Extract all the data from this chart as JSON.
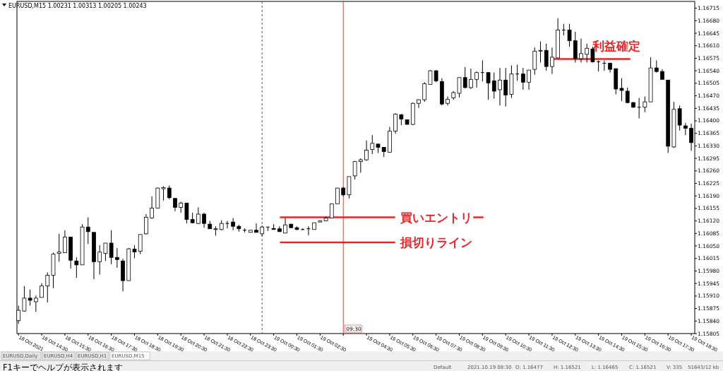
{
  "chart_data": {
    "type": "candlestick",
    "title": "EURUSD,M15  1.00231 1.00313 1.00205 1.00243",
    "x": [
      "2021-10-18T13:30",
      "2021-10-18T13:45",
      "2021-10-18T14:00",
      "2021-10-18T14:15",
      "2021-10-18T14:30",
      "2021-10-18T14:45",
      "2021-10-18T15:00",
      "2021-10-18T15:15",
      "2021-10-18T15:30",
      "2021-10-18T15:45",
      "2021-10-18T16:00",
      "2021-10-18T16:15",
      "2021-10-18T16:30",
      "2021-10-18T16:45",
      "2021-10-18T17:00",
      "2021-10-18T17:15",
      "2021-10-18T17:30",
      "2021-10-18T17:45",
      "2021-10-18T18:00",
      "2021-10-18T18:15",
      "2021-10-18T18:30",
      "2021-10-18T18:45",
      "2021-10-18T19:00",
      "2021-10-18T19:15",
      "2021-10-18T19:30",
      "2021-10-18T19:45",
      "2021-10-18T20:00",
      "2021-10-18T20:15",
      "2021-10-18T20:30",
      "2021-10-18T20:45",
      "2021-10-18T21:00",
      "2021-10-18T21:15",
      "2021-10-18T21:30",
      "2021-10-18T21:45",
      "2021-10-18T22:00",
      "2021-10-18T22:15",
      "2021-10-18T22:30",
      "2021-10-18T22:45",
      "2021-10-18T23:00",
      "2021-10-18T23:15",
      "2021-10-18T23:30",
      "2021-10-18T23:45",
      "2021-10-19T00:00",
      "2021-10-19T00:15",
      "2021-10-19T00:30",
      "2021-10-19T00:45",
      "2021-10-19T01:00",
      "2021-10-19T01:15",
      "2021-10-19T01:30",
      "2021-10-19T01:45",
      "2021-10-19T02:00",
      "2021-10-19T02:15",
      "2021-10-19T02:30",
      "2021-10-19T02:45",
      "2021-10-19T03:00",
      "2021-10-19T03:15",
      "2021-10-19T03:30",
      "2021-10-19T03:45",
      "2021-10-19T04:00",
      "2021-10-19T04:15",
      "2021-10-19T04:30",
      "2021-10-19T04:45",
      "2021-10-19T05:00",
      "2021-10-19T05:15",
      "2021-10-19T05:30",
      "2021-10-19T05:45",
      "2021-10-19T06:00",
      "2021-10-19T06:15",
      "2021-10-19T06:30",
      "2021-10-19T06:45",
      "2021-10-19T07:00",
      "2021-10-19T07:15",
      "2021-10-19T07:30",
      "2021-10-19T07:45",
      "2021-10-19T08:00",
      "2021-10-19T08:15",
      "2021-10-19T08:30",
      "2021-10-19T08:45",
      "2021-10-19T09:00",
      "2021-10-19T09:15",
      "2021-10-19T09:30",
      "2021-10-19T09:45",
      "2021-10-19T10:00",
      "2021-10-19T10:15",
      "2021-10-19T10:30",
      "2021-10-19T10:45",
      "2021-10-19T11:00",
      "2021-10-19T11:15",
      "2021-10-19T11:30",
      "2021-10-19T11:45",
      "2021-10-19T12:00",
      "2021-10-19T12:15",
      "2021-10-19T12:30",
      "2021-10-19T12:45",
      "2021-10-19T13:00",
      "2021-10-19T13:15",
      "2021-10-19T13:30",
      "2021-10-19T13:45",
      "2021-10-19T14:00",
      "2021-10-19T14:15",
      "2021-10-19T14:30",
      "2021-10-19T14:45",
      "2021-10-19T15:00",
      "2021-10-19T15:15",
      "2021-10-19T15:30",
      "2021-10-19T15:45",
      "2021-10-19T16:00",
      "2021-10-19T16:15",
      "2021-10-19T16:30",
      "2021-10-19T16:45",
      "2021-10-19T17:00",
      "2021-10-19T17:15",
      "2021-10-19T17:30",
      "2021-10-19T17:45",
      "2021-10-19T18:00",
      "2021-10-19T18:15",
      "2021-10-19T18:30"
    ],
    "ohlc": [
      [
        1.15841,
        1.15883,
        1.15832,
        1.1587
      ],
      [
        1.15868,
        1.15938,
        1.15866,
        1.15904
      ],
      [
        1.15904,
        1.15928,
        1.15883,
        1.15898
      ],
      [
        1.15894,
        1.15911,
        1.15866,
        1.15904
      ],
      [
        1.15906,
        1.15946,
        1.15906,
        1.15938
      ],
      [
        1.15938,
        1.15976,
        1.15892,
        1.15968
      ],
      [
        1.15968,
        1.16031,
        1.15932,
        1.16027
      ],
      [
        1.16029,
        1.16084,
        1.16006,
        1.16033
      ],
      [
        1.16031,
        1.16094,
        1.16031,
        1.16075
      ],
      [
        1.16075,
        1.16075,
        1.15987,
        1.1601
      ],
      [
        1.16008,
        1.16018,
        1.15961,
        1.15997
      ],
      [
        1.15997,
        1.16111,
        1.15997,
        1.16103
      ],
      [
        1.16103,
        1.1613,
        1.16056,
        1.1609
      ],
      [
        1.16088,
        1.16088,
        1.15957,
        1.16006
      ],
      [
        1.16006,
        1.16052,
        1.1597,
        1.16033
      ],
      [
        1.16029,
        1.16058,
        1.16008,
        1.16058
      ],
      [
        1.16058,
        1.16094,
        1.15999,
        1.16018
      ],
      [
        1.16018,
        1.16044,
        1.15989,
        1.16012
      ],
      [
        1.16008,
        1.16014,
        1.15923,
        1.15953
      ],
      [
        1.15953,
        1.16044,
        1.15953,
        1.16042
      ],
      [
        1.16041,
        1.16052,
        1.16016,
        1.16033
      ],
      [
        1.16035,
        1.16082,
        1.16027,
        1.16082
      ],
      [
        1.16084,
        1.16139,
        1.16082,
        1.1613
      ],
      [
        1.16128,
        1.16189,
        1.16126,
        1.16156
      ],
      [
        1.16156,
        1.16213,
        1.16156,
        1.16212
      ],
      [
        1.1621,
        1.16217,
        1.16177,
        1.16213
      ],
      [
        1.16212,
        1.16219,
        1.16181,
        1.16185
      ],
      [
        1.16183,
        1.16183,
        1.16147,
        1.16158
      ],
      [
        1.16158,
        1.16174,
        1.16143,
        1.1617
      ],
      [
        1.1617,
        1.1617,
        1.16113,
        1.16124
      ],
      [
        1.16124,
        1.16143,
        1.16113,
        1.16115
      ],
      [
        1.16113,
        1.16158,
        1.16111,
        1.16139
      ],
      [
        1.16139,
        1.16143,
        1.16101,
        1.16113
      ],
      [
        1.16111,
        1.1612,
        1.16098,
        1.16098
      ],
      [
        1.16096,
        1.16105,
        1.16079,
        1.16098
      ],
      [
        1.16096,
        1.16122,
        1.16094,
        1.16113
      ],
      [
        1.16113,
        1.1612,
        1.16099,
        1.16113
      ],
      [
        1.16117,
        1.16128,
        1.16094,
        1.16105
      ],
      [
        1.16105,
        1.16109,
        1.1609,
        1.16098
      ],
      [
        1.16094,
        1.16099,
        1.16088,
        1.16094
      ],
      [
        1.16088,
        1.16094,
        1.16088,
        1.16094
      ],
      [
        1.16094,
        1.16113,
        1.16088,
        1.16088
      ],
      [
        1.16084,
        1.16107,
        1.16077,
        1.16103
      ],
      [
        1.16103,
        1.16103,
        1.16092,
        1.16103
      ],
      [
        1.16099,
        1.16111,
        1.16096,
        1.16096
      ],
      [
        1.16098,
        1.16105,
        1.1609,
        1.1609
      ],
      [
        1.16086,
        1.16128,
        1.16086,
        1.16109
      ],
      [
        1.16111,
        1.16111,
        1.16101,
        1.16101
      ],
      [
        1.16101,
        1.16105,
        1.16094,
        1.16096
      ],
      [
        1.16096,
        1.16099,
        1.16094,
        1.16096
      ],
      [
        1.16098,
        1.16105,
        1.1608,
        1.16098
      ],
      [
        1.16096,
        1.16115,
        1.16096,
        1.16115
      ],
      [
        1.16117,
        1.16122,
        1.16117,
        1.1612
      ],
      [
        1.1612,
        1.16132,
        1.1612,
        1.16128
      ],
      [
        1.16128,
        1.16168,
        1.16128,
        1.16168
      ],
      [
        1.16168,
        1.16212,
        1.16168,
        1.16212
      ],
      [
        1.16212,
        1.16215,
        1.16189,
        1.16193
      ],
      [
        1.16193,
        1.16244,
        1.16183,
        1.16244
      ],
      [
        1.16246,
        1.16288,
        1.16236,
        1.16286
      ],
      [
        1.16286,
        1.16295,
        1.16255,
        1.16291
      ],
      [
        1.16291,
        1.16345,
        1.16288,
        1.16318
      ],
      [
        1.1632,
        1.1636,
        1.16307,
        1.16337
      ],
      [
        1.16335,
        1.16335,
        1.1631,
        1.16326
      ],
      [
        1.16326,
        1.16326,
        1.16299,
        1.16314
      ],
      [
        1.16312,
        1.16383,
        1.16312,
        1.16371
      ],
      [
        1.16371,
        1.16421,
        1.16364,
        1.16419
      ],
      [
        1.16417,
        1.16419,
        1.16388,
        1.16405
      ],
      [
        1.16403,
        1.16403,
        1.1639,
        1.1639
      ],
      [
        1.1639,
        1.16451,
        1.16388,
        1.16449
      ],
      [
        1.16449,
        1.1646,
        1.16436,
        1.16459
      ],
      [
        1.16459,
        1.16508,
        1.16453,
        1.16504
      ],
      [
        1.16502,
        1.16542,
        1.16502,
        1.1654
      ],
      [
        1.1654,
        1.16542,
        1.16508,
        1.16512
      ],
      [
        1.1651,
        1.16519,
        1.16443,
        1.16447
      ],
      [
        1.16449,
        1.16468,
        1.16443,
        1.1646
      ],
      [
        1.16464,
        1.16483,
        1.16459,
        1.16479
      ],
      [
        1.16477,
        1.16521,
        1.16465,
        1.16521
      ],
      [
        1.16521,
        1.1655,
        1.16491,
        1.16493
      ],
      [
        1.16493,
        1.16546,
        1.16489,
        1.16516
      ],
      [
        1.16516,
        1.16538,
        1.16493,
        1.16535
      ],
      [
        1.16535,
        1.16569,
        1.1651,
        1.16535
      ],
      [
        1.16535,
        1.16536,
        1.16459,
        1.16506
      ],
      [
        1.16512,
        1.16535,
        1.16462,
        1.16483
      ],
      [
        1.16487,
        1.16548,
        1.16443,
        1.16514
      ],
      [
        1.16514,
        1.16548,
        1.1644,
        1.16472
      ],
      [
        1.16474,
        1.16555,
        1.16464,
        1.16531
      ],
      [
        1.16531,
        1.16557,
        1.16512,
        1.16531
      ],
      [
        1.16531,
        1.16548,
        1.16487,
        1.16508
      ],
      [
        1.16508,
        1.16542,
        1.16487,
        1.16542
      ],
      [
        1.16544,
        1.16605,
        1.16529,
        1.16595
      ],
      [
        1.16595,
        1.16622,
        1.16563,
        1.16597
      ],
      [
        1.16597,
        1.16616,
        1.1654,
        1.16552
      ],
      [
        1.16552,
        1.16605,
        1.16531,
        1.16578
      ],
      [
        1.16576,
        1.16687,
        1.16576,
        1.16654
      ],
      [
        1.16654,
        1.16671,
        1.16639,
        1.16654
      ],
      [
        1.16654,
        1.16671,
        1.16607,
        1.16624
      ],
      [
        1.16624,
        1.16649,
        1.16563,
        1.16574
      ],
      [
        1.16574,
        1.1663,
        1.16563,
        1.16588
      ],
      [
        1.16586,
        1.16616,
        1.16563,
        1.16603
      ],
      [
        1.16601,
        1.16607,
        1.16563,
        1.16565
      ],
      [
        1.16565,
        1.16569,
        1.16538,
        1.16565
      ],
      [
        1.16561,
        1.16569,
        1.1654,
        1.16561
      ],
      [
        1.16561,
        1.16563,
        1.16535,
        1.16544
      ],
      [
        1.16546,
        1.16546,
        1.16474,
        1.16489
      ],
      [
        1.16491,
        1.16519,
        1.16455,
        1.16485
      ],
      [
        1.16483,
        1.16493,
        1.16449,
        1.16451
      ],
      [
        1.16451,
        1.16453,
        1.16436,
        1.16438
      ],
      [
        1.16438,
        1.16464,
        1.16407,
        1.16438
      ],
      [
        1.16438,
        1.16468,
        1.16424,
        1.16453
      ],
      [
        1.16453,
        1.16578,
        1.16453,
        1.16548
      ],
      [
        1.16548,
        1.16569,
        1.16535,
        1.16538
      ],
      [
        1.16538,
        1.16544,
        1.16516,
        1.16516
      ],
      [
        1.16514,
        1.16514,
        1.1631,
        1.16329
      ],
      [
        1.16327,
        1.16453,
        1.16324,
        1.16432
      ],
      [
        1.16434,
        1.16443,
        1.16373,
        1.16388
      ],
      [
        1.16386,
        1.16394,
        1.1636,
        1.16379
      ],
      [
        1.16379,
        1.16392,
        1.16316,
        1.16339
      ]
    ],
    "xlim": [
      "2021-10-18T13:26",
      "2021-10-19T18:39"
    ],
    "xticks": [
      {
        "value": "2021-10-18T13:30",
        "label": "18 Oct 2021"
      },
      {
        "value": "2021-10-18T14:30",
        "label": "18 Oct 14:30"
      },
      {
        "value": "2021-10-18T15:30",
        "label": "18 Oct 15:30"
      },
      {
        "value": "2021-10-18T16:30",
        "label": "18 Oct 16:30"
      },
      {
        "value": "2021-10-18T17:30",
        "label": "18 Oct 17:30"
      },
      {
        "value": "2021-10-18T18:30",
        "label": "18 Oct 18:30"
      },
      {
        "value": "2021-10-18T19:30",
        "label": "18 Oct 19:30"
      },
      {
        "value": "2021-10-18T20:30",
        "label": "18 Oct 20:30"
      },
      {
        "value": "2021-10-18T21:30",
        "label": "18 Oct 21:30"
      },
      {
        "value": "2021-10-18T22:30",
        "label": "18 Oct 22:30"
      },
      {
        "value": "2021-10-18T23:30",
        "label": "18 Oct 23:30"
      },
      {
        "value": "2021-10-19T00:30",
        "label": "19 Oct 00:30"
      },
      {
        "value": "2021-10-19T01:30",
        "label": "19 Oct 01:30"
      },
      {
        "value": "2021-10-19T02:30",
        "label": "19 Oct 02:30"
      },
      {
        "value": "2021-10-19T03:30",
        "label": null
      },
      {
        "value": "2021-10-19T04:30",
        "label": "19 Oct 04:30"
      },
      {
        "value": "2021-10-19T05:30",
        "label": "19 Oct 05:30"
      },
      {
        "value": "2021-10-19T06:30",
        "label": "19 Oct 06:30"
      },
      {
        "value": "2021-10-19T07:30",
        "label": "19 Oct 07:30"
      },
      {
        "value": "2021-10-19T08:30",
        "label": "19 Oct 08:30"
      },
      {
        "value": "2021-10-19T09:30",
        "label": "19 Oct 09:30"
      },
      {
        "value": "2021-10-19T10:30",
        "label": "19 Oct 10:30"
      },
      {
        "value": "2021-10-19T11:30",
        "label": "19 Oct 11:30"
      },
      {
        "value": "2021-10-19T12:30",
        "label": "19 Oct 12:30"
      },
      {
        "value": "2021-10-19T13:30",
        "label": "19 Oct 13:30"
      },
      {
        "value": "2021-10-19T14:30",
        "label": "19 Oct 14:30"
      },
      {
        "value": "2021-10-19T15:30",
        "label": "19 Oct 15:30"
      },
      {
        "value": "2021-10-19T16:30",
        "label": "19 Oct 16:30"
      },
      {
        "value": "2021-10-19T17:30",
        "label": "19 Oct 17:30"
      },
      {
        "value": "2021-10-19T18:30",
        "label": "19 Oct 18:30"
      }
    ],
    "ylim": [
      1.15805,
      1.16734
    ],
    "yticks": [
      1.15805,
      {
        "value": 1.1584,
        "label": "1.15840"
      },
      1.15875,
      {
        "value": 1.1591,
        "label": "1.15910"
      },
      1.15945,
      {
        "value": 1.1598,
        "label": "1.15980"
      },
      1.16015,
      {
        "value": 1.1605,
        "label": "1.16050"
      },
      1.16085,
      {
        "value": 1.1612,
        "label": "1.16120"
      },
      1.16155,
      {
        "value": 1.1619,
        "label": "1.16190"
      },
      1.16225,
      {
        "value": 1.1626,
        "label": "1.16260"
      },
      1.16295,
      {
        "value": 1.1633,
        "label": "1.16330"
      },
      1.16365,
      {
        "value": 1.164,
        "label": "1.16400"
      },
      1.16435,
      {
        "value": 1.1647,
        "label": "1.16470"
      },
      1.16505,
      {
        "value": 1.1654,
        "label": "1.16540"
      },
      1.16575,
      {
        "value": 1.1661,
        "label": "1.16610"
      },
      1.16645,
      {
        "value": 1.1668,
        "label": "1.16680"
      },
      1.16715
    ],
    "ref_lines": [
      {
        "axis": "x",
        "value": "2021-10-19T00:00",
        "color": "#555555",
        "line_style": "dashed"
      },
      {
        "axis": "x",
        "value": "2021-10-19T03:30",
        "label": "09:30",
        "color": "#e04040",
        "line_style": "solid"
      },
      {
        "axis": "y",
        "value": 1.1613,
        "label": "買いエントリー",
        "color": "#e8262a",
        "line_style": "solid"
      },
      {
        "axis": "y",
        "value": 1.1606,
        "label": "損切りライン",
        "color": "#e8262a",
        "line_style": "solid"
      },
      {
        "axis": "y",
        "value": 1.16573,
        "label": "利益確定",
        "color": "#e8262a",
        "line_style": "solid"
      }
    ],
    "annotations": [
      "EURUSD,Daily",
      "EURUSD,H4",
      "EURUSD,H1",
      "EURUSD,M15",
      "F1キーでヘルプが表示されます",
      "Default",
      "2021.10.19 08:30",
      "O: 1.16477",
      "H: 1.16521",
      "L: 1.16465",
      "C: 1.16521",
      "V: 335",
      "51643/12 kb"
    ],
    "grid": false
  }
}
